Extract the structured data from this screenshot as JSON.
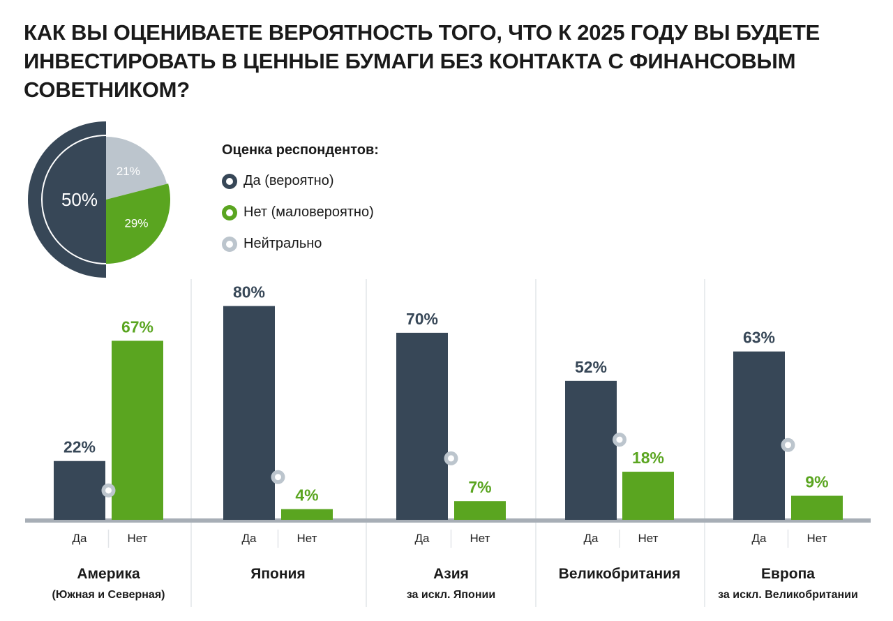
{
  "title": "КАК ВЫ ОЦЕНИВАЕТЕ ВЕРОЯТНОСТЬ ТОГО, ЧТО К 2025 ГОДУ ВЫ БУДЕТЕ ИНВЕСТИРОВАТЬ В ЦЕННЫЕ БУМАГИ БЕЗ КОНТАКТА С ФИНАНСОВЫМ СОВЕТНИКОМ?",
  "legend": {
    "title": "Оценка респондентов:",
    "items": [
      {
        "label": "Да (вероятно)",
        "color": "#374757"
      },
      {
        "label": "Нет (маловероятно)",
        "color": "#5aa520"
      },
      {
        "label": "Нейтрально",
        "color": "#bcc5cd"
      }
    ]
  },
  "colors": {
    "yes": "#374757",
    "no": "#5aa520",
    "neutral": "#bcc5cd",
    "baseline": "#a7aeb6",
    "divider": "#e2e5e8",
    "text": "#1a1a1a"
  },
  "chart_data": [
    {
      "type": "pie",
      "slices": [
        {
          "name": "Да (вероятно)",
          "value": 50,
          "label": "50%",
          "color": "#374757"
        },
        {
          "name": "Нет (маловероятно)",
          "value": 29,
          "label": "29%",
          "color": "#5aa520"
        },
        {
          "name": "Нейтрально",
          "value": 21,
          "label": "21%",
          "color": "#bcc5cd"
        }
      ]
    },
    {
      "type": "bar",
      "groups": [
        {
          "name": "Америка",
          "sub": "(Южная и Северная)",
          "yes": 22,
          "no": 67,
          "neutral": 11,
          "yes_label": "22%",
          "no_label": "67%"
        },
        {
          "name": "Япония",
          "sub": "",
          "yes": 80,
          "no": 4,
          "neutral": 16,
          "yes_label": "80%",
          "no_label": "4%"
        },
        {
          "name": "Азия",
          "sub": "за искл. Японии",
          "yes": 70,
          "no": 7,
          "neutral": 23,
          "yes_label": "70%",
          "no_label": "7%"
        },
        {
          "name": "Великобритания",
          "sub": "",
          "yes": 52,
          "no": 18,
          "neutral": 30,
          "yes_label": "52%",
          "no_label": "18%"
        },
        {
          "name": "Европа",
          "sub": "за искл. Великобритании",
          "yes": 63,
          "no": 9,
          "neutral": 28,
          "yes_label": "63%",
          "no_label": "9%"
        }
      ],
      "category_labels": [
        "Да",
        "Нет"
      ],
      "ylim": [
        0,
        100
      ],
      "grid": false
    }
  ]
}
